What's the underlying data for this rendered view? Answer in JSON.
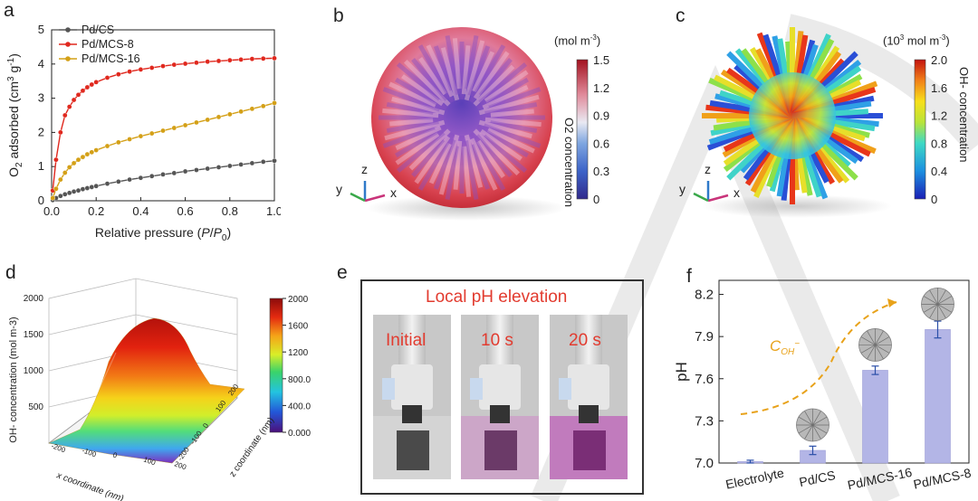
{
  "panels": {
    "a": "a",
    "b": "b",
    "c": "c",
    "d": "d",
    "e": "e",
    "f": "f"
  },
  "chart_data": [
    {
      "panel": "a",
      "type": "line",
      "xlabel": "Relative pressure (P/P0)",
      "ylabel": "O2 adsorbed (cm3 g-1)",
      "xlim": [
        0,
        1.0
      ],
      "ylim": [
        0,
        5
      ],
      "xticks": [
        "0.0",
        "0.2",
        "0.4",
        "0.6",
        "0.8",
        "1.0"
      ],
      "yticks": [
        "0",
        "1",
        "2",
        "3",
        "4",
        "5"
      ],
      "legend_position": "top-left",
      "x": [
        0.005,
        0.02,
        0.04,
        0.06,
        0.08,
        0.1,
        0.12,
        0.14,
        0.16,
        0.18,
        0.2,
        0.25,
        0.3,
        0.35,
        0.4,
        0.45,
        0.5,
        0.55,
        0.6,
        0.65,
        0.7,
        0.75,
        0.8,
        0.85,
        0.9,
        0.95,
        1.0
      ],
      "series": [
        {
          "name": "Pd/CS",
          "color": "#555555",
          "values": [
            0.02,
            0.08,
            0.14,
            0.19,
            0.23,
            0.27,
            0.3,
            0.34,
            0.37,
            0.4,
            0.43,
            0.5,
            0.56,
            0.62,
            0.67,
            0.72,
            0.77,
            0.81,
            0.86,
            0.9,
            0.94,
            0.98,
            1.02,
            1.06,
            1.1,
            1.14,
            1.17
          ]
        },
        {
          "name": "Pd/MCS-8",
          "color": "#e0281e",
          "values": [
            0.3,
            1.2,
            2.0,
            2.5,
            2.75,
            2.95,
            3.1,
            3.22,
            3.32,
            3.4,
            3.47,
            3.6,
            3.7,
            3.78,
            3.84,
            3.89,
            3.94,
            3.98,
            4.01,
            4.04,
            4.07,
            4.09,
            4.11,
            4.13,
            4.15,
            4.16,
            4.17
          ]
        },
        {
          "name": "Pd/MCS-16",
          "color": "#d4a017",
          "values": [
            0.08,
            0.35,
            0.62,
            0.82,
            0.98,
            1.1,
            1.2,
            1.28,
            1.36,
            1.42,
            1.48,
            1.6,
            1.71,
            1.8,
            1.89,
            1.97,
            2.05,
            2.13,
            2.21,
            2.29,
            2.37,
            2.45,
            2.53,
            2.61,
            2.69,
            2.77,
            2.86
          ]
        }
      ]
    },
    {
      "panel": "b",
      "type": "heatmap",
      "colorbar_unit": "(mol m-3)",
      "colorbar_label": "O2 concentration",
      "colorbar_ticks": [
        "1.5",
        "1.2",
        "0.9",
        "0.6",
        "0.3",
        "0"
      ],
      "axes": {
        "x": "x",
        "y": "y",
        "z": "z"
      }
    },
    {
      "panel": "c",
      "type": "heatmap",
      "colorbar_unit": "(103 mol m-3)",
      "colorbar_label": "OH- concentration",
      "colorbar_ticks": [
        "2.0",
        "1.6",
        "1.2",
        "0.8",
        "0.4",
        "0"
      ],
      "axes": {
        "x": "x",
        "y": "y",
        "z": "z"
      }
    },
    {
      "panel": "d",
      "type": "heatmap",
      "zlabel": "OH- concentration (mol m-3)",
      "xlabel": "x coordinate (nm)",
      "ylabel": "z coordinate (nm)",
      "zticks": [
        "0",
        "500",
        "1000",
        "1500",
        "2000"
      ],
      "xticks": [
        "-200",
        "-100",
        "0",
        "100",
        "200"
      ],
      "yticks": [
        "-200",
        "-100",
        "0",
        "100",
        "200"
      ],
      "colorbar_ticks": [
        "2000",
        "1600",
        "1200",
        "800.0",
        "400.0",
        "0.000"
      ]
    },
    {
      "panel": "f",
      "type": "bar",
      "ylabel": "pH",
      "ylim": [
        7.0,
        8.3
      ],
      "yticks": [
        "7.0",
        "7.3",
        "7.6",
        "7.9",
        "8.2"
      ],
      "categories": [
        "Electrolyte",
        "Pd/CS",
        "Pd/MCS-16",
        "Pd/MCS-8"
      ],
      "values": [
        7.01,
        7.09,
        7.66,
        7.95
      ],
      "errors": [
        0.01,
        0.03,
        0.03,
        0.06
      ],
      "annotation": "COH-",
      "bar_color": "#b3b5e6"
    }
  ],
  "panel_e": {
    "title": "Local pH elevation",
    "frames": [
      "Initial",
      "10 s",
      "20 s"
    ]
  },
  "text": {
    "b_unit": "(mol m",
    "b_unit_sup": "-3",
    "c_unit_pre": "(10",
    "c_unit_sup1": "3",
    "c_unit_mid": " mol m",
    "c_unit_sup2": "-3",
    "f_annot_main": "C",
    "f_annot_sub": "OH",
    "f_annot_sup": "−"
  }
}
